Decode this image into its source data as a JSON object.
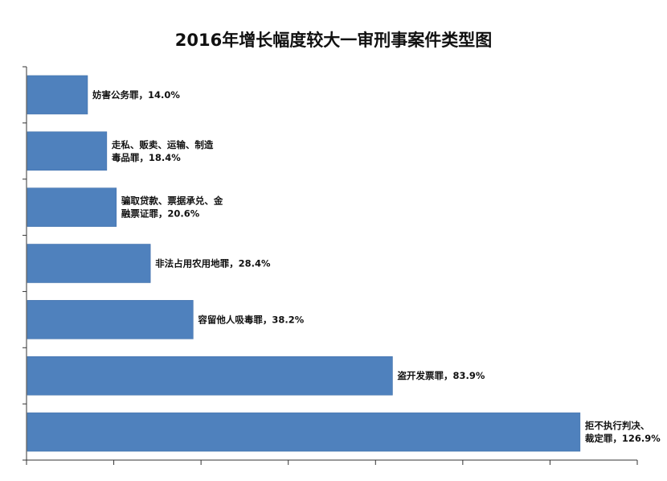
{
  "chart_data": {
    "type": "bar",
    "orientation": "horizontal",
    "title": "2016年增长幅度较大一审刑事案件类型图",
    "categories": [
      "妨害公务罪",
      "走私、贩卖、运输、制造毒品罪",
      "骗取贷款、票据承兑、金融票证罪",
      "非法占用农用地罪",
      "容留他人吸毒罪",
      "盗开发票罪",
      "拒不执行判决、裁定罪"
    ],
    "values": [
      14.0,
      18.4,
      20.6,
      28.4,
      38.2,
      83.9,
      126.9
    ],
    "labels": [
      [
        "妨害公务罪，14.0%"
      ],
      [
        "走私、贩卖、运输、制造",
        "毒品罪，18.4%"
      ],
      [
        "骗取贷款、票据承兑、金",
        "融票证罪，20.6%"
      ],
      [
        "非法占用农用地罪，28.4%"
      ],
      [
        "容留他人吸毒罪，38.2%"
      ],
      [
        "盗开发票罪，83.9%"
      ],
      [
        "拒不执行判决、",
        "裁定罪，126.9%"
      ]
    ],
    "xlim": [
      0,
      140
    ],
    "bar_color": "#4f81bd",
    "bar_border_color": "#3a6aa6",
    "axis_color": "#333333",
    "grid": false,
    "legend": "none"
  }
}
